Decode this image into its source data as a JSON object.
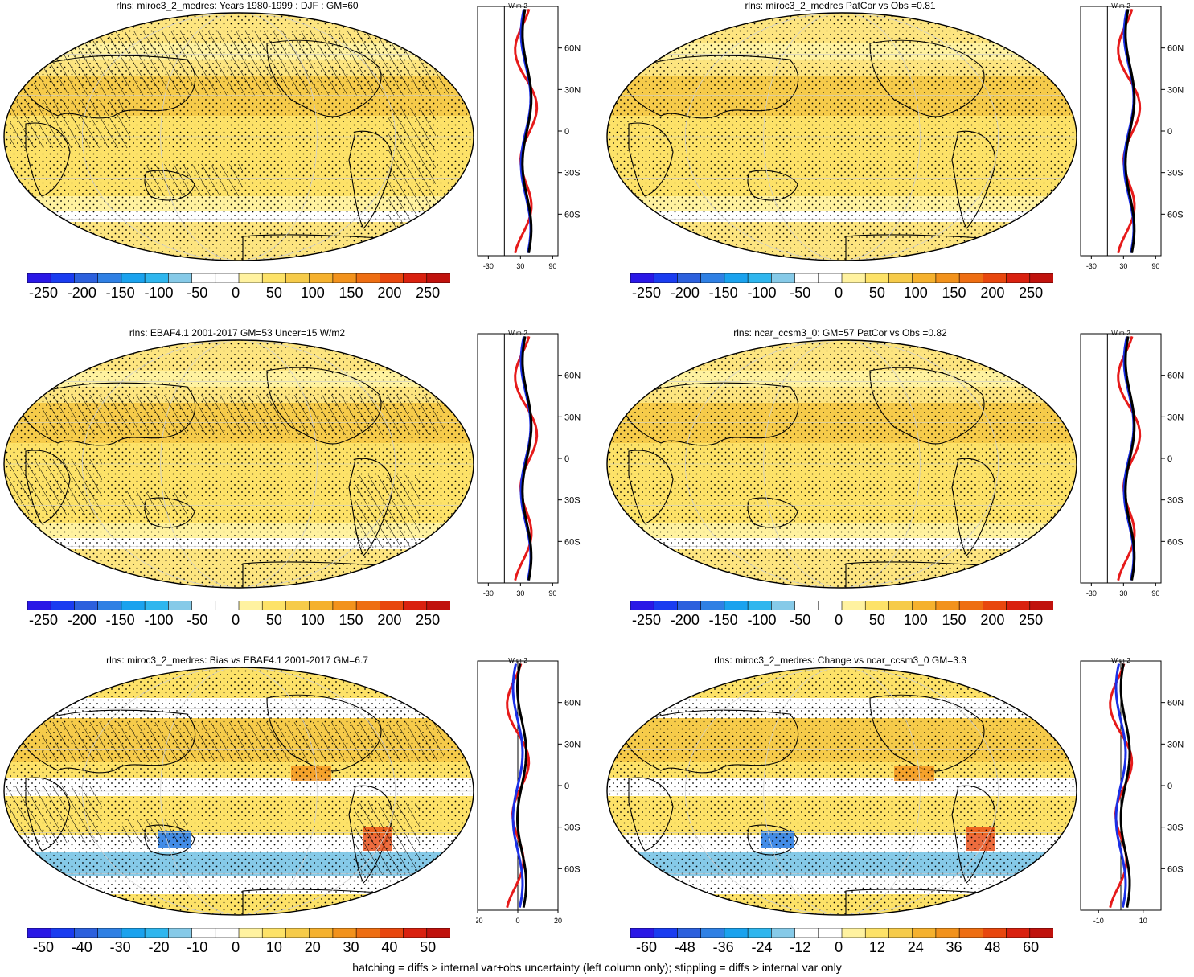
{
  "panels": [
    {
      "id": "p1",
      "title": "rlns: miroc3_2_medres: Years 1980-1999 : DJF : GM=60",
      "colorbar": {
        "labels": [
          "-250",
          "-200",
          "-150",
          "-100",
          "-50",
          "0",
          "50",
          "100",
          "150",
          "200",
          "250"
        ],
        "kind": "abs"
      },
      "zonal": {
        "units": "W m-2",
        "xticks": [
          "-30",
          "30",
          "90"
        ],
        "yticks": [
          "60N",
          "30N",
          "0",
          "30S",
          "60S"
        ],
        "xrange": [
          -50,
          100
        ]
      },
      "hatch": "heavy"
    },
    {
      "id": "p2",
      "title": "rlns: miroc3_2_medres PatCor vs Obs =0.81",
      "colorbar": {
        "labels": [
          "-250",
          "-200",
          "-150",
          "-100",
          "-50",
          "0",
          "50",
          "100",
          "150",
          "200",
          "250"
        ],
        "kind": "abs"
      },
      "zonal": {
        "units": "W m-2",
        "xticks": [
          "-30",
          "30",
          "90"
        ],
        "yticks": [
          "60N",
          "30N",
          "0",
          "30S",
          "60S"
        ],
        "xrange": [
          -50,
          100
        ]
      },
      "hatch": "none"
    },
    {
      "id": "p3",
      "title": "rlns: EBAF4.1 2001-2017 GM=53 Uncer=15 W/m2",
      "colorbar": {
        "labels": [
          "-250",
          "-200",
          "-150",
          "-100",
          "-50",
          "0",
          "50",
          "100",
          "150",
          "200",
          "250"
        ],
        "kind": "abs"
      },
      "zonal": {
        "units": "W m-2",
        "xticks": [
          "-30",
          "30",
          "90"
        ],
        "yticks": [
          "60N",
          "30N",
          "0",
          "30S",
          "60S"
        ],
        "xrange": [
          -50,
          100
        ]
      },
      "hatch": "medium"
    },
    {
      "id": "p4",
      "title": "rlns: ncar_ccsm3_0: GM=57 PatCor vs Obs =0.82",
      "colorbar": {
        "labels": [
          "-250",
          "-200",
          "-150",
          "-100",
          "-50",
          "0",
          "50",
          "100",
          "150",
          "200",
          "250"
        ],
        "kind": "abs"
      },
      "zonal": {
        "units": "W m-2",
        "xticks": [
          "-30",
          "30",
          "90"
        ],
        "yticks": [
          "60N",
          "30N",
          "0",
          "30S",
          "60S"
        ],
        "xrange": [
          -50,
          100
        ]
      },
      "hatch": "none"
    },
    {
      "id": "p5",
      "title": "rlns: miroc3_2_medres: Bias vs EBAF4.1 2001-2017 GM=6.7",
      "colorbar": {
        "labels": [
          "-50",
          "-40",
          "-30",
          "-20",
          "-10",
          "0",
          "10",
          "20",
          "30",
          "40",
          "50"
        ],
        "kind": "bias"
      },
      "zonal": {
        "units": "W m-2",
        "xticks": [
          "-20",
          "0",
          "20"
        ],
        "yticks": [
          "60N",
          "30N",
          "0",
          "30S",
          "60S"
        ],
        "xrange": [
          -20,
          20
        ]
      },
      "hatch": "medium"
    },
    {
      "id": "p6",
      "title": "rlns: miroc3_2_medres: Change vs ncar_ccsm3_0 GM=3.3",
      "colorbar": {
        "labels": [
          "-60",
          "-48",
          "-36",
          "-24",
          "-12",
          "0",
          "12",
          "24",
          "36",
          "48",
          "60"
        ],
        "kind": "bias"
      },
      "zonal": {
        "units": "W m-2",
        "xticks": [
          "-10",
          "10"
        ],
        "yticks": [
          "60N",
          "30N",
          "0",
          "30S",
          "60S"
        ],
        "xrange": [
          -18,
          18
        ]
      },
      "hatch": "none"
    }
  ],
  "colorscale": [
    "#2a18e6",
    "#1a3cf0",
    "#2c60dd",
    "#2f80e4",
    "#1aa2ee",
    "#2fb6ee",
    "#86cae8",
    "#ffffff",
    "#ffffff",
    "#fff2a0",
    "#fde268",
    "#f6cb4a",
    "#f5b12e",
    "#f2921c",
    "#ee6e12",
    "#e8470e",
    "#d9210f",
    "#c0120d"
  ],
  "footer": "hatching = diffs > internal var+obs uncertainty (left column only); stippling = diffs > internal var only"
}
